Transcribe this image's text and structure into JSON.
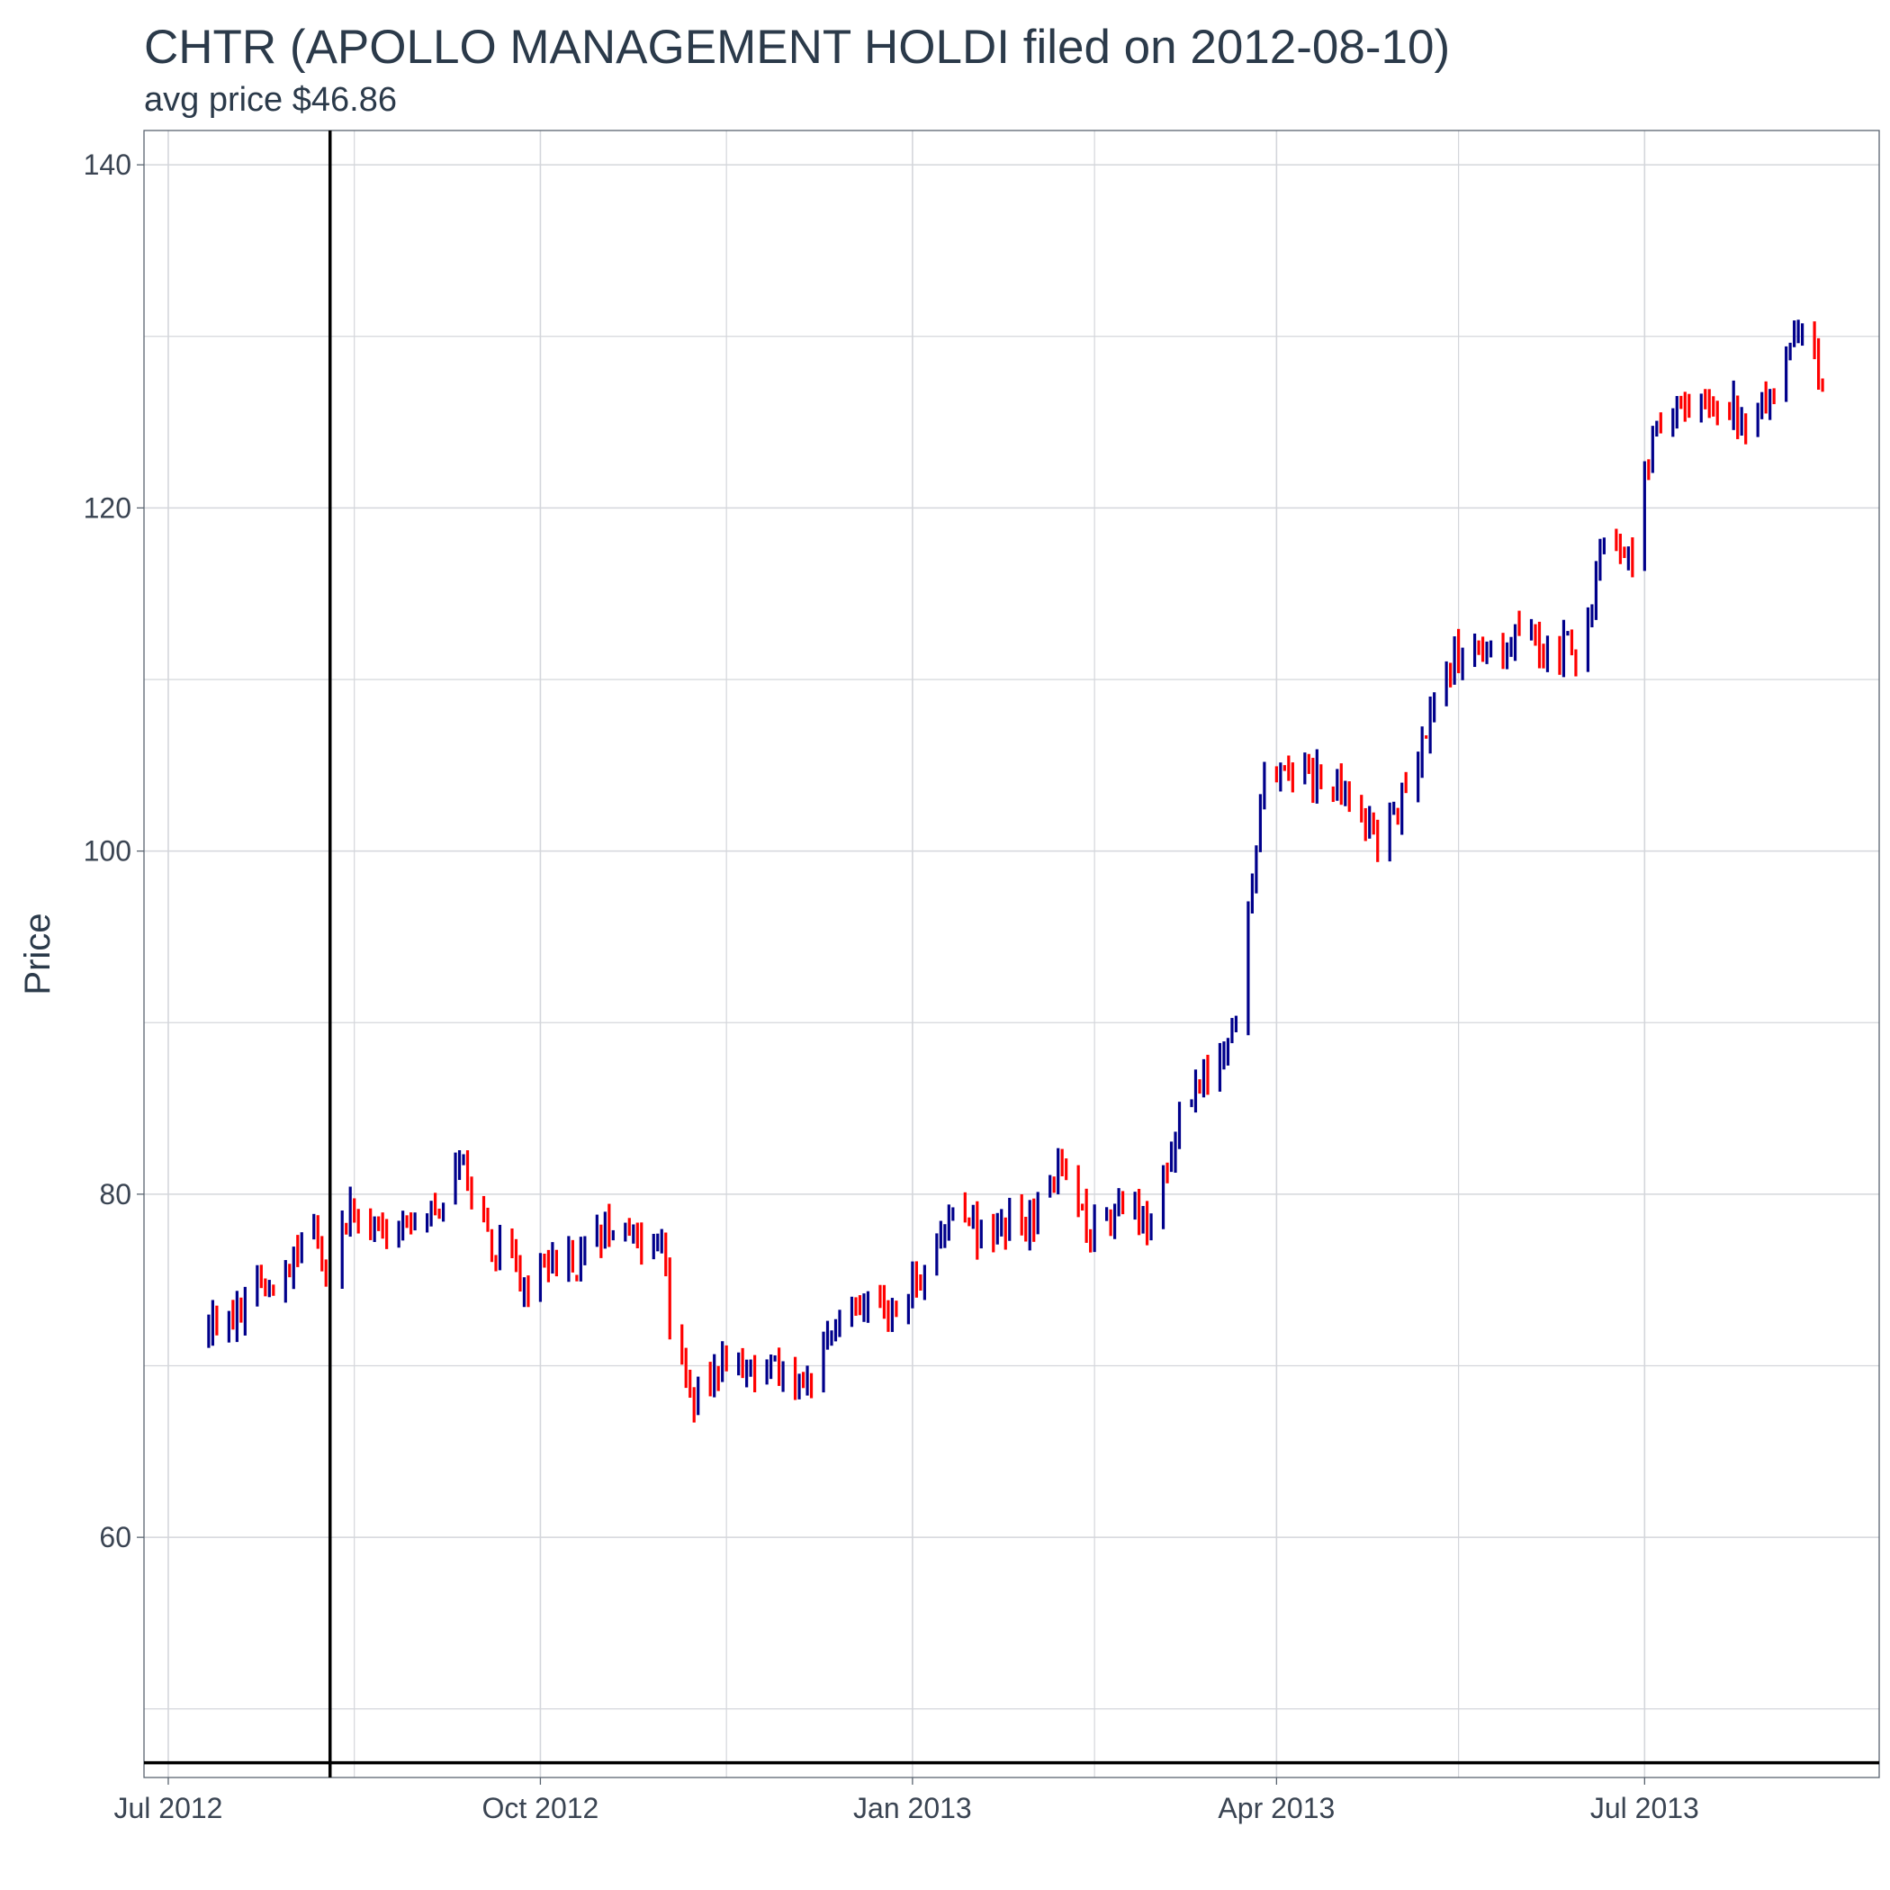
{
  "chart_data": {
    "type": "ohlc",
    "title": "CHTR (APOLLO MANAGEMENT HOLDI filed on 2012-08-10)",
    "subtitle": "avg price $46.86",
    "xlabel": "",
    "ylabel": "Price",
    "x_range": [
      "2012-06-25",
      "2013-08-28"
    ],
    "y_range": [
      46,
      142
    ],
    "y_ticks": [
      60,
      80,
      100,
      120,
      140
    ],
    "y_minor_ticks": [
      50,
      70,
      90,
      110,
      130
    ],
    "x_ticks": [
      {
        "date": "2012-07-01",
        "label": "Jul 2012"
      },
      {
        "date": "2012-10-01",
        "label": "Oct 2012"
      },
      {
        "date": "2013-01-01",
        "label": "Jan 2013"
      },
      {
        "date": "2013-04-01",
        "label": "Apr 2013"
      },
      {
        "date": "2013-07-01",
        "label": "Jul 2013"
      }
    ],
    "x_minor_ticks": [
      "2012-08-16",
      "2012-11-16",
      "2013-02-15",
      "2013-05-16"
    ],
    "grid": true,
    "filing_date": "2012-08-10",
    "avg_price": 46.86,
    "up_color": "#00008b",
    "down_color": "#ff0000",
    "ref_line_color": "#000000",
    "grid_color": "#d4d6db",
    "trading_days_start": "2012-07-11",
    "trading_days_end": "2013-08-14",
    "price_keyframes": [
      [
        "2012-07-11",
        72.0
      ],
      [
        "2012-07-25",
        74.5
      ],
      [
        "2012-08-01",
        76.5
      ],
      [
        "2012-08-06",
        79.0
      ],
      [
        "2012-08-09",
        74.5
      ],
      [
        "2012-08-15",
        79.5
      ],
      [
        "2012-08-22",
        77.0
      ],
      [
        "2012-08-31",
        77.5
      ],
      [
        "2012-09-07",
        80.0
      ],
      [
        "2012-09-10",
        82.5
      ],
      [
        "2012-09-14",
        80.0
      ],
      [
        "2012-09-20",
        77.0
      ],
      [
        "2012-09-27",
        74.5
      ],
      [
        "2012-10-03",
        76.5
      ],
      [
        "2012-10-10",
        76.0
      ],
      [
        "2012-10-17",
        78.5
      ],
      [
        "2012-10-25",
        77.0
      ],
      [
        "2012-10-31",
        77.5
      ],
      [
        "2012-11-02",
        71.5
      ],
      [
        "2012-11-08",
        68.0
      ],
      [
        "2012-11-16",
        70.0
      ],
      [
        "2012-11-23",
        70.0
      ],
      [
        "2012-12-06",
        69.0
      ],
      [
        "2012-12-14",
        73.0
      ],
      [
        "2012-12-21",
        73.5
      ],
      [
        "2012-12-31",
        73.5
      ],
      [
        "2013-01-07",
        78.0
      ],
      [
        "2013-01-18",
        78.0
      ],
      [
        "2013-01-31",
        78.5
      ],
      [
        "2013-02-06",
        81.5
      ],
      [
        "2013-02-14",
        78.0
      ],
      [
        "2013-02-22",
        79.5
      ],
      [
        "2013-03-01",
        78.0
      ],
      [
        "2013-03-08",
        84.5
      ],
      [
        "2013-03-15",
        87.5
      ],
      [
        "2013-03-22",
        89.5
      ],
      [
        "2013-03-26",
        99.0
      ],
      [
        "2013-03-29",
        104.0
      ],
      [
        "2013-04-12",
        104.0
      ],
      [
        "2013-04-26",
        101.0
      ],
      [
        "2013-05-03",
        103.0
      ],
      [
        "2013-05-10",
        109.0
      ],
      [
        "2013-05-17",
        112.0
      ],
      [
        "2013-05-31",
        112.5
      ],
      [
        "2013-06-14",
        111.5
      ],
      [
        "2013-06-21",
        118.0
      ],
      [
        "2013-06-28",
        117.5
      ],
      [
        "2013-07-03",
        125.0
      ],
      [
        "2013-07-12",
        126.0
      ],
      [
        "2013-07-26",
        125.5
      ],
      [
        "2013-08-02",
        126.5
      ],
      [
        "2013-08-07",
        131.0
      ],
      [
        "2013-08-14",
        127.5
      ]
    ]
  }
}
